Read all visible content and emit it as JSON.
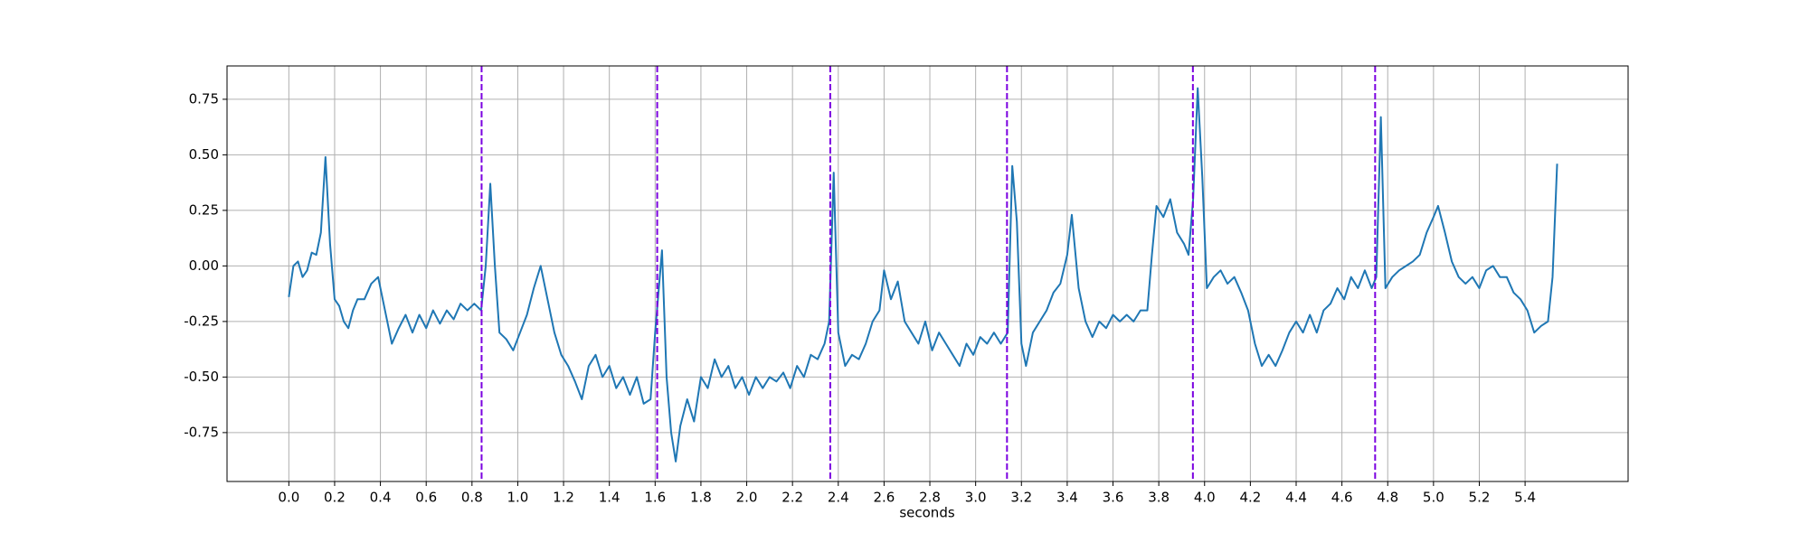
{
  "chart_data": {
    "type": "line",
    "xlabel": "seconds",
    "xlim": [
      -0.27,
      5.85
    ],
    "ylim": [
      -0.97,
      0.9
    ],
    "grid": true,
    "xticks": [
      {
        "value": 0,
        "label": "0.0"
      },
      0.2,
      0.4,
      0.6,
      0.8,
      {
        "value": 1,
        "label": "1.0"
      },
      1.2,
      1.4,
      1.6,
      1.8,
      {
        "value": 2,
        "label": "2.0"
      },
      2.2,
      2.4,
      2.6,
      2.8,
      {
        "value": 3,
        "label": "3.0"
      },
      3.2,
      3.4,
      3.6,
      3.8,
      {
        "value": 4,
        "label": "4.0"
      },
      4.2,
      4.4,
      4.6,
      4.8,
      {
        "value": 5,
        "label": "5.0"
      },
      5.2,
      5.4
    ],
    "yticks": [
      -0.75,
      {
        "value": -0.5,
        "label": "-0.50"
      },
      -0.25,
      {
        "value": 0,
        "label": "0.00"
      },
      0.25,
      {
        "value": 0.5,
        "label": "0.50"
      },
      0.75
    ],
    "x": [
      0.0,
      0.02,
      0.04,
      0.06,
      0.08,
      0.1,
      0.12,
      0.14,
      0.16,
      0.18,
      0.2,
      0.22,
      0.24,
      0.26,
      0.28,
      0.3,
      0.33,
      0.36,
      0.39,
      0.42,
      0.45,
      0.48,
      0.51,
      0.54,
      0.57,
      0.6,
      0.63,
      0.66,
      0.69,
      0.72,
      0.75,
      0.78,
      0.81,
      0.84,
      0.86,
      0.88,
      0.9,
      0.92,
      0.95,
      0.98,
      1.01,
      1.04,
      1.07,
      1.1,
      1.13,
      1.16,
      1.19,
      1.22,
      1.25,
      1.28,
      1.31,
      1.34,
      1.37,
      1.4,
      1.43,
      1.46,
      1.49,
      1.52,
      1.55,
      1.58,
      1.6,
      1.63,
      1.65,
      1.67,
      1.69,
      1.71,
      1.74,
      1.77,
      1.8,
      1.83,
      1.86,
      1.89,
      1.92,
      1.95,
      1.98,
      2.01,
      2.04,
      2.07,
      2.1,
      2.13,
      2.16,
      2.19,
      2.22,
      2.25,
      2.28,
      2.31,
      2.34,
      2.36,
      2.38,
      2.4,
      2.43,
      2.46,
      2.49,
      2.52,
      2.55,
      2.58,
      2.6,
      2.63,
      2.66,
      2.69,
      2.72,
      2.75,
      2.78,
      2.81,
      2.84,
      2.87,
      2.9,
      2.93,
      2.96,
      2.99,
      3.02,
      3.05,
      3.08,
      3.11,
      3.14,
      3.16,
      3.18,
      3.2,
      3.22,
      3.25,
      3.28,
      3.31,
      3.34,
      3.37,
      3.4,
      3.42,
      3.45,
      3.48,
      3.51,
      3.54,
      3.57,
      3.6,
      3.63,
      3.66,
      3.69,
      3.72,
      3.75,
      3.77,
      3.79,
      3.82,
      3.85,
      3.88,
      3.91,
      3.93,
      3.95,
      3.97,
      3.99,
      4.01,
      4.04,
      4.07,
      4.1,
      4.13,
      4.16,
      4.19,
      4.22,
      4.25,
      4.28,
      4.31,
      4.34,
      4.37,
      4.4,
      4.43,
      4.46,
      4.49,
      4.52,
      4.55,
      4.58,
      4.61,
      4.64,
      4.67,
      4.7,
      4.73,
      4.75,
      4.77,
      4.79,
      4.82,
      4.85,
      4.88,
      4.91,
      4.94,
      4.97,
      5.0,
      5.02,
      5.05,
      5.08,
      5.11,
      5.14,
      5.17,
      5.2,
      5.23,
      5.26,
      5.29,
      5.32,
      5.35,
      5.38,
      5.41,
      5.44,
      5.47,
      5.5,
      5.52,
      5.54
    ],
    "series": [
      {
        "color": "#1f77b4",
        "values": [
          -0.14,
          0.0,
          0.02,
          -0.05,
          -0.02,
          0.06,
          0.05,
          0.15,
          0.49,
          0.1,
          -0.15,
          -0.18,
          -0.25,
          -0.28,
          -0.2,
          -0.15,
          -0.15,
          -0.08,
          -0.05,
          -0.2,
          -0.35,
          -0.28,
          -0.22,
          -0.3,
          -0.22,
          -0.28,
          -0.2,
          -0.26,
          -0.2,
          -0.24,
          -0.17,
          -0.2,
          -0.17,
          -0.2,
          0.0,
          0.37,
          0.0,
          -0.3,
          -0.33,
          -0.38,
          -0.3,
          -0.22,
          -0.1,
          0.0,
          -0.15,
          -0.3,
          -0.4,
          -0.45,
          -0.52,
          -0.6,
          -0.45,
          -0.4,
          -0.5,
          -0.45,
          -0.55,
          -0.5,
          -0.58,
          -0.5,
          -0.62,
          -0.6,
          -0.3,
          0.07,
          -0.5,
          -0.75,
          -0.88,
          -0.72,
          -0.6,
          -0.7,
          -0.5,
          -0.55,
          -0.42,
          -0.5,
          -0.45,
          -0.55,
          -0.5,
          -0.58,
          -0.5,
          -0.55,
          -0.5,
          -0.52,
          -0.48,
          -0.55,
          -0.45,
          -0.5,
          -0.4,
          -0.42,
          -0.35,
          -0.25,
          0.42,
          -0.3,
          -0.45,
          -0.4,
          -0.42,
          -0.35,
          -0.25,
          -0.2,
          -0.02,
          -0.15,
          -0.07,
          -0.25,
          -0.3,
          -0.35,
          -0.25,
          -0.38,
          -0.3,
          -0.35,
          -0.4,
          -0.45,
          -0.35,
          -0.4,
          -0.32,
          -0.35,
          -0.3,
          -0.35,
          -0.3,
          0.45,
          0.2,
          -0.35,
          -0.45,
          -0.3,
          -0.25,
          -0.2,
          -0.12,
          -0.08,
          0.05,
          0.23,
          -0.1,
          -0.25,
          -0.32,
          -0.25,
          -0.28,
          -0.22,
          -0.25,
          -0.22,
          -0.25,
          -0.2,
          -0.2,
          0.05,
          0.27,
          0.22,
          0.3,
          0.15,
          0.1,
          0.05,
          0.3,
          0.8,
          0.4,
          -0.1,
          -0.05,
          -0.02,
          -0.08,
          -0.05,
          -0.12,
          -0.2,
          -0.35,
          -0.45,
          -0.4,
          -0.45,
          -0.38,
          -0.3,
          -0.25,
          -0.3,
          -0.22,
          -0.3,
          -0.2,
          -0.17,
          -0.1,
          -0.15,
          -0.05,
          -0.1,
          -0.02,
          -0.1,
          -0.05,
          0.67,
          -0.1,
          -0.05,
          -0.02,
          0.0,
          0.02,
          0.05,
          0.15,
          0.22,
          0.27,
          0.15,
          0.02,
          -0.05,
          -0.08,
          -0.05,
          -0.1,
          -0.02,
          0.0,
          -0.05,
          -0.05,
          -0.12,
          -0.15,
          -0.2,
          -0.3,
          -0.27,
          -0.25,
          -0.05,
          0.46
        ]
      }
    ],
    "vlines": {
      "color": "#7b00e0",
      "values": [
        0.842,
        1.609,
        2.365,
        3.137,
        3.949,
        4.745
      ]
    }
  }
}
